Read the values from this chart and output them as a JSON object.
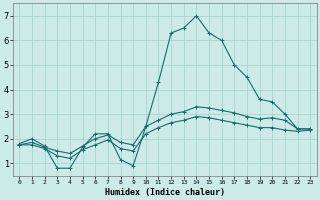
{
  "xlabel": "Humidex (Indice chaleur)",
  "bg_color": "#cceae8",
  "grid_color": "#aad4d0",
  "line_color": "#1a6b6b",
  "xlim": [
    -0.5,
    23.5
  ],
  "ylim": [
    0.5,
    7.5
  ],
  "xticks": [
    0,
    1,
    2,
    3,
    4,
    5,
    6,
    7,
    8,
    9,
    10,
    11,
    12,
    13,
    14,
    15,
    16,
    17,
    18,
    19,
    20,
    21,
    22,
    23
  ],
  "yticks": [
    1,
    2,
    3,
    4,
    5,
    6,
    7
  ],
  "series": {
    "line1_x": [
      0,
      1,
      2,
      3,
      4,
      5,
      6,
      7,
      8,
      9,
      10,
      11,
      12,
      13,
      14,
      15,
      16,
      17,
      18,
      19,
      20,
      21,
      22,
      23
    ],
    "line1_y": [
      1.8,
      2.0,
      1.7,
      0.8,
      0.8,
      1.65,
      2.2,
      2.2,
      1.15,
      0.9,
      2.5,
      4.3,
      6.3,
      6.5,
      7.0,
      6.3,
      6.0,
      5.0,
      4.5,
      3.6,
      3.5,
      3.0,
      2.4,
      2.4
    ],
    "line2_x": [
      0,
      1,
      2,
      3,
      4,
      5,
      6,
      7,
      8,
      9,
      10,
      11,
      12,
      13,
      14,
      15,
      16,
      17,
      18,
      19,
      20,
      21,
      22,
      23
    ],
    "line2_y": [
      1.75,
      1.85,
      1.65,
      1.5,
      1.4,
      1.7,
      2.0,
      2.15,
      1.85,
      1.75,
      2.5,
      2.75,
      3.0,
      3.1,
      3.3,
      3.25,
      3.15,
      3.05,
      2.9,
      2.8,
      2.85,
      2.75,
      2.4,
      2.4
    ],
    "line3_x": [
      0,
      1,
      2,
      3,
      4,
      5,
      6,
      7,
      8,
      9,
      10,
      11,
      12,
      13,
      14,
      15,
      16,
      17,
      18,
      19,
      20,
      21,
      22,
      23
    ],
    "line3_y": [
      1.75,
      1.75,
      1.6,
      1.3,
      1.2,
      1.55,
      1.75,
      1.95,
      1.6,
      1.5,
      2.2,
      2.45,
      2.65,
      2.75,
      2.9,
      2.85,
      2.75,
      2.65,
      2.55,
      2.45,
      2.45,
      2.35,
      2.3,
      2.35
    ]
  }
}
